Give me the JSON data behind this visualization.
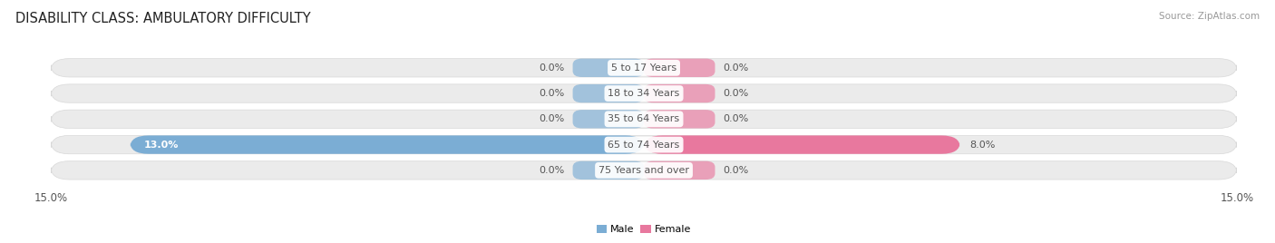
{
  "title": "DISABILITY CLASS: AMBULATORY DIFFICULTY",
  "source": "Source: ZipAtlas.com",
  "categories": [
    "5 to 17 Years",
    "18 to 34 Years",
    "35 to 64 Years",
    "65 to 74 Years",
    "75 Years and over"
  ],
  "male_values": [
    0.0,
    0.0,
    0.0,
    13.0,
    0.0
  ],
  "female_values": [
    0.0,
    0.0,
    0.0,
    8.0,
    0.0
  ],
  "male_color": "#7badd4",
  "female_color": "#e8789e",
  "bar_row_bg": "#ececec",
  "x_max": 15.0,
  "label_color": "#555555",
  "title_color": "#222222",
  "title_fontsize": 10.5,
  "val_label_fontsize": 8,
  "category_fontsize": 8,
  "axis_label_fontsize": 8.5,
  "background_color": "#ffffff",
  "small_bar_width": 1.8,
  "row_bg_color": "#ebebeb",
  "row_bg_border": "#d8d8d8"
}
